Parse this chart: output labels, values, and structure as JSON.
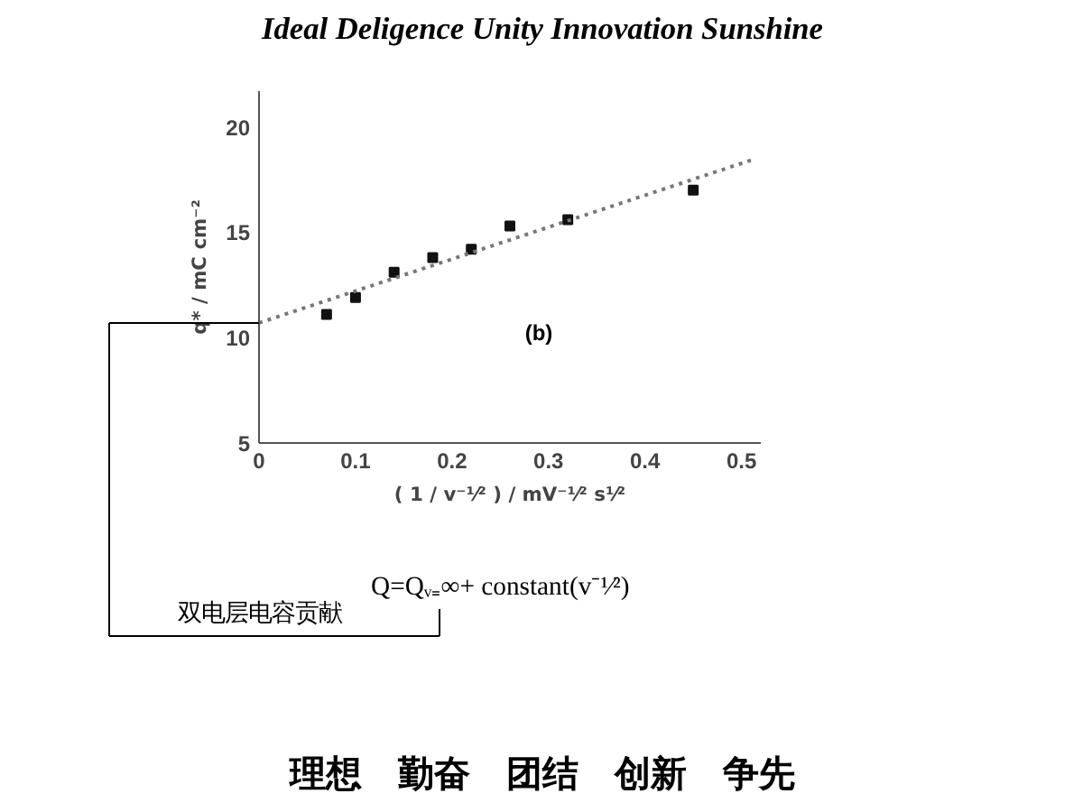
{
  "chart_data": {
    "type": "scatter",
    "subtitle": "Ideal Deligence Unity Innovation Sunshine",
    "xlabel": "( 1 / v⁻¹⁄² ) / mV⁻¹⁄² s¹⁄²",
    "ylabel": "q* / mC cm⁻²",
    "x": [
      0.07,
      0.1,
      0.14,
      0.18,
      0.22,
      0.26,
      0.32,
      0.45
    ],
    "series": [
      {
        "color": "#111111",
        "marker": "square",
        "values": [
          11.1,
          11.9,
          13.1,
          13.8,
          14.2,
          15.3,
          15.6,
          17.0
        ]
      },
      {
        "type": "line",
        "color": "#777777",
        "line_style": "dotted",
        "marker": "none",
        "x": [
          0,
          0.515
        ],
        "values": [
          10.7,
          18.5
        ]
      }
    ],
    "xlim": [
      0,
      0.52
    ],
    "ylim": [
      5,
      21.7
    ],
    "xticks": [
      0,
      0.1,
      0.2,
      0.3,
      0.4,
      0.5
    ],
    "yticks": [
      5,
      10,
      15,
      20
    ],
    "grid": false,
    "annotations": [
      "(b)",
      "Q=Qᵥ₌∞+ constant(v⁻¹⁄²)",
      "双电层电容贡献",
      "理想　勤奋　团结　创新　争先"
    ]
  }
}
